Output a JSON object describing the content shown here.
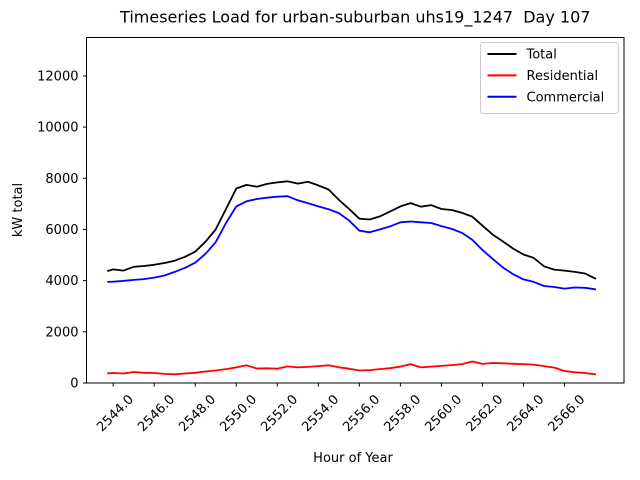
{
  "figure": {
    "background": "#ffffff"
  },
  "chart_data": {
    "type": "line",
    "title": "Timeseries Load for urban-suburban uhs19_1247  Day 107",
    "xlabel": "Hour of Year",
    "ylabel": "kW total",
    "grid": false,
    "xlim": [
      2542.7,
      2568.9
    ],
    "ylim": [
      0,
      13500
    ],
    "x_ticks": [
      2544,
      2546,
      2548,
      2550,
      2552,
      2554,
      2556,
      2558,
      2560,
      2562,
      2564,
      2566
    ],
    "x_tick_labels": [
      "2544.0",
      "2546.0",
      "2548.0",
      "2550.0",
      "2552.0",
      "2554.0",
      "2556.0",
      "2558.0",
      "2560.0",
      "2562.0",
      "2564.0",
      "2566.0"
    ],
    "y_ticks": [
      0,
      2000,
      4000,
      6000,
      8000,
      10000,
      12000
    ],
    "y_tick_labels": [
      "0",
      "2000",
      "4000",
      "6000",
      "8000",
      "10000",
      "12000"
    ],
    "legend": {
      "position": "upper right",
      "entries": [
        "Total",
        "Residential",
        "Commercial"
      ],
      "frame_color": "#cccccc",
      "background": "#ffffff"
    },
    "x": [
      2543.75,
      2544,
      2544.5,
      2545,
      2545.5,
      2546,
      2546.5,
      2547,
      2547.5,
      2548,
      2548.5,
      2549,
      2549.5,
      2550,
      2550.5,
      2551,
      2551.5,
      2552,
      2552.5,
      2553,
      2553.5,
      2554,
      2554.5,
      2555,
      2555.5,
      2556,
      2556.5,
      2557,
      2557.5,
      2558,
      2558.5,
      2559,
      2559.5,
      2560,
      2560.5,
      2561,
      2561.5,
      2562,
      2562.5,
      2563,
      2563.5,
      2564,
      2564.5,
      2565,
      2565.5,
      2566,
      2566.5,
      2567,
      2567.5
    ],
    "series": [
      {
        "name": "Total",
        "color": "#000000",
        "values": [
          4380,
          4440,
          4390,
          4540,
          4570,
          4620,
          4690,
          4780,
          4930,
          5130,
          5520,
          6000,
          6800,
          7600,
          7740,
          7670,
          7780,
          7840,
          7880,
          7790,
          7860,
          7720,
          7560,
          7160,
          6800,
          6420,
          6390,
          6510,
          6700,
          6900,
          7030,
          6890,
          6950,
          6800,
          6760,
          6650,
          6500,
          6150,
          5800,
          5530,
          5250,
          5020,
          4890,
          4560,
          4430,
          4390,
          4340,
          4280,
          4080
        ]
      },
      {
        "name": "Residential",
        "color": "#ff0000",
        "values": [
          380,
          390,
          370,
          430,
          400,
          390,
          355,
          340,
          370,
          400,
          450,
          490,
          545,
          610,
          690,
          565,
          575,
          560,
          650,
          610,
          630,
          660,
          690,
          615,
          560,
          490,
          505,
          545,
          580,
          640,
          740,
          610,
          640,
          670,
          700,
          740,
          840,
          745,
          780,
          770,
          750,
          740,
          720,
          660,
          600,
          470,
          420,
          390,
          340
        ]
      },
      {
        "name": "Commercial",
        "color": "#0000ff",
        "values": [
          3950,
          3960,
          3990,
          4030,
          4060,
          4120,
          4200,
          4340,
          4500,
          4700,
          5050,
          5500,
          6250,
          6900,
          7100,
          7190,
          7240,
          7280,
          7300,
          7140,
          7020,
          6900,
          6790,
          6640,
          6350,
          5950,
          5890,
          6000,
          6120,
          6280,
          6310,
          6280,
          6250,
          6130,
          6020,
          5870,
          5600,
          5200,
          4850,
          4510,
          4250,
          4050,
          3950,
          3790,
          3750,
          3690,
          3730,
          3720,
          3660
        ]
      }
    ]
  }
}
